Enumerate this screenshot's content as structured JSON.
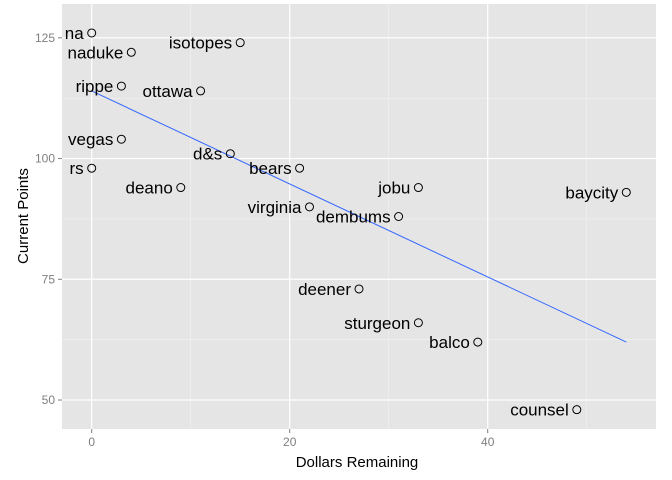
{
  "chart_data": {
    "type": "scatter",
    "xlabel": "Dollars Remaining",
    "ylabel": "Current Points",
    "xlim": [
      -3,
      57
    ],
    "ylim": [
      44,
      132
    ],
    "x_ticks": [
      0,
      20,
      40
    ],
    "y_ticks": [
      50,
      75,
      100,
      125
    ],
    "x_tick_labels": [
      "0",
      "20",
      "40"
    ],
    "y_tick_labels": [
      "50",
      "75",
      "100",
      "125"
    ],
    "grid": true,
    "legend": "none",
    "colors": {
      "panel": "#e5e5e5",
      "grid_major": "#ffffff",
      "grid_minor": "#f2f2f2",
      "trend_line": "#3366ff",
      "point_stroke": "#000000"
    },
    "points": [
      {
        "label": "na",
        "x": 0,
        "y": 126
      },
      {
        "label": "naduke",
        "x": 4,
        "y": 122
      },
      {
        "label": "isotopes",
        "x": 15,
        "y": 124
      },
      {
        "label": "rippe",
        "x": 3,
        "y": 115
      },
      {
        "label": "ottawa",
        "x": 11,
        "y": 114
      },
      {
        "label": "vegas",
        "x": 3,
        "y": 104
      },
      {
        "label": "d&s",
        "x": 14,
        "y": 101
      },
      {
        "label": "rs",
        "x": 0,
        "y": 98
      },
      {
        "label": "bears",
        "x": 21,
        "y": 98
      },
      {
        "label": "deano",
        "x": 9,
        "y": 94
      },
      {
        "label": "jobu",
        "x": 33,
        "y": 94
      },
      {
        "label": "baycity",
        "x": 54,
        "y": 93
      },
      {
        "label": "virginia",
        "x": 22,
        "y": 90
      },
      {
        "label": "dembums",
        "x": 31,
        "y": 88
      },
      {
        "label": "deener",
        "x": 27,
        "y": 73
      },
      {
        "label": "sturgeon",
        "x": 33,
        "y": 66
      },
      {
        "label": "balco",
        "x": 39,
        "y": 62
      },
      {
        "label": "counsel",
        "x": 49,
        "y": 48
      }
    ],
    "trend_line": {
      "x": [
        0,
        54
      ],
      "y": [
        114,
        62
      ]
    }
  }
}
